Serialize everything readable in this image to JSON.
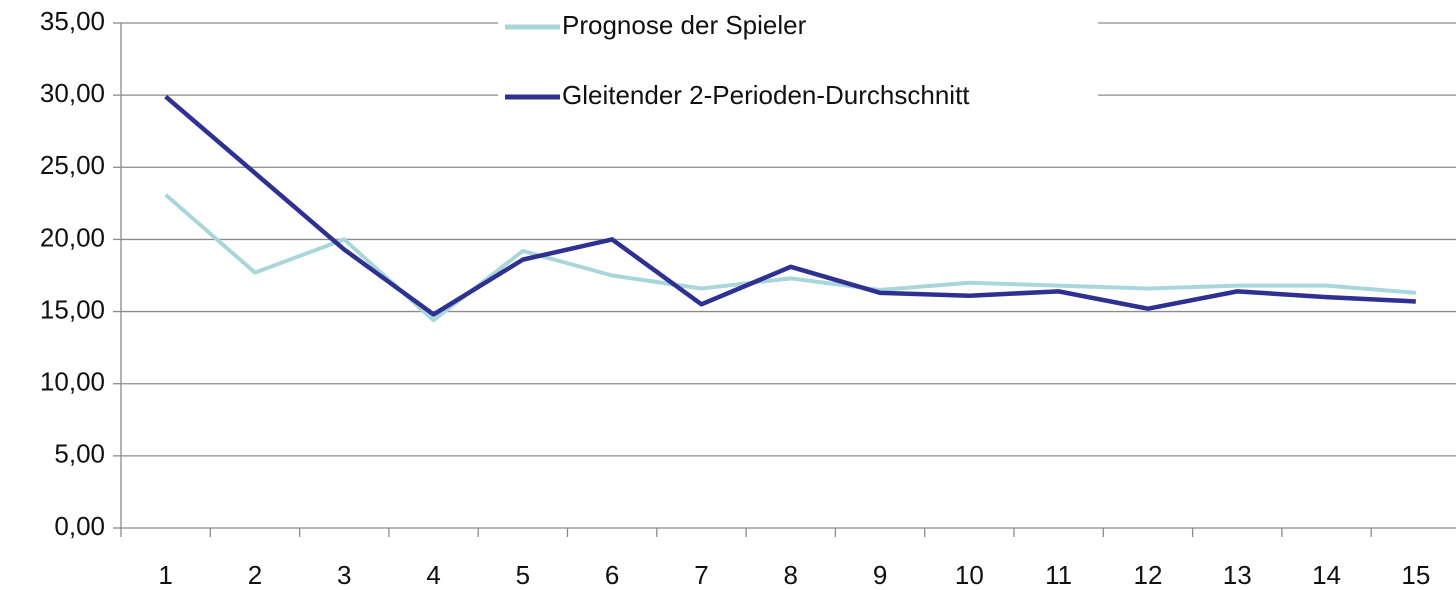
{
  "chart_data": {
    "type": "line",
    "categories": [
      "1",
      "2",
      "3",
      "4",
      "5",
      "6",
      "7",
      "8",
      "9",
      "10",
      "11",
      "12",
      "13",
      "14",
      "15"
    ],
    "series": [
      {
        "name": "Prognose der Spieler",
        "color": "#a9d6db",
        "values": [
          23.1,
          17.7,
          20.0,
          14.4,
          19.2,
          17.5,
          16.6,
          17.3,
          16.5,
          17.0,
          16.8,
          16.6,
          16.8,
          16.8,
          16.3
        ]
      },
      {
        "name": "Gleitender 2-Perioden-Durchschnitt",
        "color": "#2e3192",
        "values": [
          29.9,
          24.6,
          19.3,
          14.8,
          18.6,
          20.0,
          15.5,
          18.1,
          16.3,
          16.1,
          16.4,
          15.2,
          16.4,
          16.0,
          15.7
        ]
      }
    ],
    "ylim": [
      0,
      35
    ],
    "yticks": [
      {
        "value": 0,
        "label": "0,00"
      },
      {
        "value": 5,
        "label": "5,00"
      },
      {
        "value": 10,
        "label": "10,00"
      },
      {
        "value": 15,
        "label": "15,00"
      },
      {
        "value": 20,
        "label": "20,00"
      },
      {
        "value": 25,
        "label": "25,00"
      },
      {
        "value": 30,
        "label": "30,00"
      },
      {
        "value": 35,
        "label": "35,00"
      }
    ],
    "grid": true,
    "legend": "top"
  }
}
